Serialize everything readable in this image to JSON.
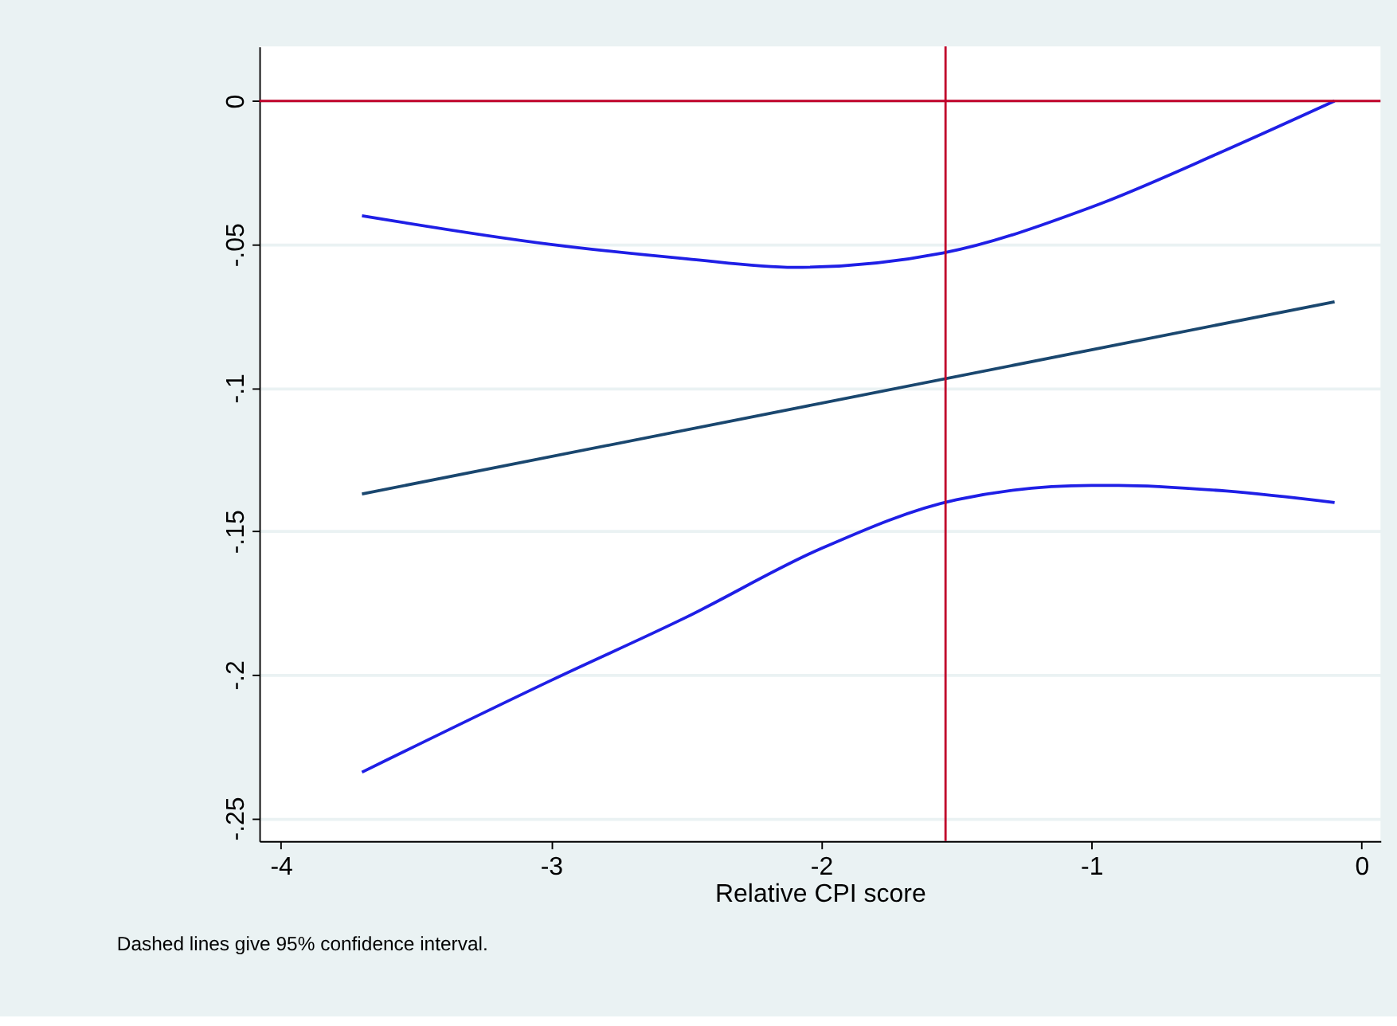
{
  "chart_data": {
    "type": "line",
    "xlabel": "Relative CPI score",
    "annotations": [
      "Dashed lines give 95% confidence interval."
    ],
    "xlim": [
      -4.08,
      0.07
    ],
    "ylim": [
      -0.258,
      0.019
    ],
    "xticks": [
      -4,
      -3,
      -2,
      -1,
      0
    ],
    "yticks": [
      0,
      {
        "value": -0.05,
        "label": "-.05"
      },
      {
        "value": -0.1,
        "label": "-.1"
      },
      {
        "value": -0.15,
        "label": "-.15"
      },
      {
        "value": -0.2,
        "label": "-.2"
      },
      {
        "value": -0.25,
        "label": "-.25"
      }
    ],
    "grid": "y",
    "line_style": "solid",
    "marker": "none",
    "ref_lines": [
      {
        "axis": "y",
        "value": 0,
        "color": "#c0002a"
      },
      {
        "axis": "x",
        "value": -1.54,
        "color": "#c0002a"
      }
    ],
    "series": [
      {
        "color": "#1a476f",
        "x": [
          -3.7,
          -0.1
        ],
        "values": [
          -0.137,
          -0.07
        ]
      },
      {
        "color": "#1f1fe6",
        "x": [
          -3.7,
          -3.0,
          -2.5,
          -2.1,
          -1.55,
          -1.0,
          -0.5,
          -0.1
        ],
        "values": [
          -0.04,
          -0.05,
          -0.055,
          -0.058,
          -0.053,
          -0.037,
          -0.017,
          0
        ]
      },
      {
        "color": "#1f1fe6",
        "x": [
          -3.7,
          -3.0,
          -2.5,
          -2.0,
          -1.5,
          -1.0,
          -0.9,
          -0.5,
          -0.1
        ],
        "values": [
          -0.234,
          -0.202,
          -0.18,
          -0.156,
          -0.139,
          -0.134,
          -0.134,
          -0.136,
          -0.14
        ]
      }
    ]
  }
}
